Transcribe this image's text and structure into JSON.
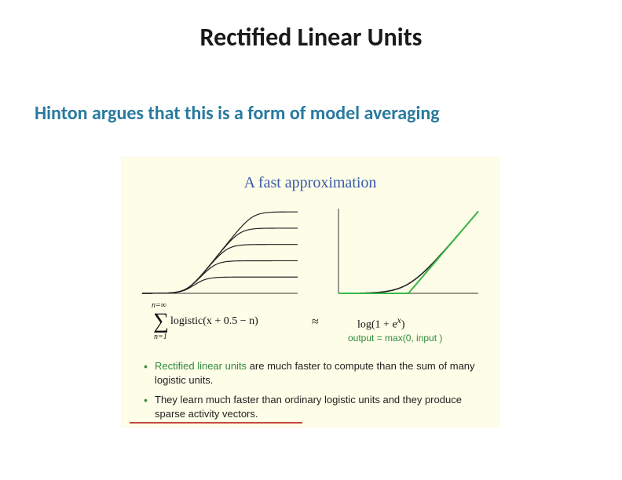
{
  "slide": {
    "title": "Rectified Linear Units",
    "subtitle": "Hinton argues that this is a form of model averaging"
  },
  "figure": {
    "title": "A fast approximation",
    "background_color": "#fdfde8",
    "title_color": "#3a5aa8",
    "left_chart": {
      "type": "line",
      "xlim": [
        -6,
        6
      ],
      "ylim": [
        0,
        5.2
      ],
      "axis_color": "#333333",
      "curve_color": "#222222",
      "line_width": 1.2,
      "curves_offsets": [
        0,
        1,
        2,
        3,
        4
      ]
    },
    "right_chart": {
      "type": "line",
      "xlim": [
        -6,
        6
      ],
      "ylim": [
        0,
        6.2
      ],
      "softplus_color": "#222222",
      "relu_color": "#39b54a",
      "line_width": 1.6,
      "axis_color": "#333333"
    },
    "formula": {
      "sum_top": "n=∞",
      "sum_bottom": "n=1",
      "left_body": "logistic(x + 0.5 − n)",
      "approx": "≈",
      "right_body_prefix": "log(1 + e",
      "right_body_sup": "x",
      "right_body_suffix": ")",
      "output_line": "output = max(0,  input )"
    },
    "bullets": [
      {
        "highlight": "Rectified linear units",
        "rest": " are much faster to compute than the sum of many logistic units."
      },
      {
        "highlight": "",
        "rest": "They learn much faster than ordinary logistic units and they produce sparse activity vectors."
      }
    ],
    "redline_color": "#c54a3a"
  }
}
